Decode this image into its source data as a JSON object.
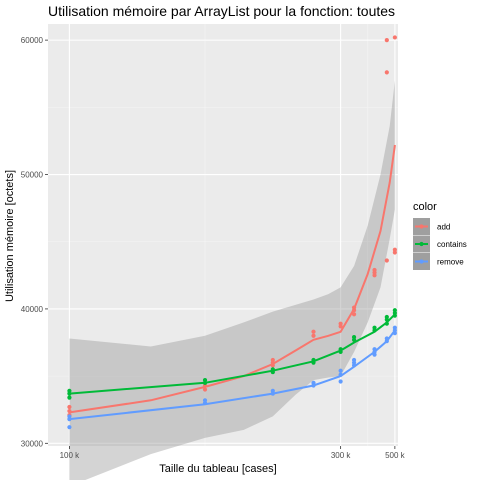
{
  "chart_data": {
    "type": "scatter",
    "title": "Utilisation mémoire par ArrayList pour la fonction: toutes",
    "xlabel": "Taille du tableau [cases]",
    "ylabel": "Utilisation mémoire [octets]",
    "xscale": "reciprocal",
    "xlim": [
      95000,
      520000
    ],
    "ylim": [
      29800,
      61200
    ],
    "x_ticks": [
      100000,
      300000,
      500000
    ],
    "x_tick_labels": [
      "100 k",
      "300 k",
      "500 k"
    ],
    "y_ticks": [
      30000,
      40000,
      50000,
      60000
    ],
    "y_tick_labels": [
      "30000",
      "40000",
      "50000",
      "60000"
    ],
    "grid": true,
    "legend": {
      "title": "color",
      "position": "right"
    },
    "series": [
      {
        "name": "add",
        "color": "#F8766D",
        "points": [
          [
            100000,
            32100
          ],
          [
            100000,
            32400
          ],
          [
            100000,
            32700
          ],
          [
            150000,
            34000
          ],
          [
            150000,
            34300
          ],
          [
            200000,
            35800
          ],
          [
            200000,
            36000
          ],
          [
            200000,
            36200
          ],
          [
            250000,
            38000
          ],
          [
            250000,
            38300
          ],
          [
            300000,
            38700
          ],
          [
            300000,
            38900
          ],
          [
            333000,
            39600
          ],
          [
            333000,
            39900
          ],
          [
            333000,
            40100
          ],
          [
            400000,
            42500
          ],
          [
            400000,
            42700
          ],
          [
            400000,
            42900
          ],
          [
            455000,
            43600
          ],
          [
            455000,
            57600
          ],
          [
            455000,
            60000
          ],
          [
            500000,
            44200
          ],
          [
            500000,
            44400
          ],
          [
            500000,
            60200
          ]
        ],
        "smooth": [
          [
            100000,
            32300
          ],
          [
            125000,
            33200
          ],
          [
            150000,
            34200
          ],
          [
            175000,
            35000
          ],
          [
            200000,
            35900
          ],
          [
            225000,
            36900
          ],
          [
            250000,
            37700
          ],
          [
            275000,
            38000
          ],
          [
            300000,
            38300
          ],
          [
            333000,
            40000
          ],
          [
            375000,
            42600
          ],
          [
            425000,
            45800
          ],
          [
            470000,
            49400
          ],
          [
            500000,
            52200
          ]
        ],
        "band_upper": [
          [
            100000,
            37800
          ],
          [
            125000,
            37200
          ],
          [
            150000,
            38000
          ],
          [
            175000,
            39000
          ],
          [
            200000,
            39800
          ],
          [
            225000,
            40300
          ],
          [
            250000,
            40700
          ],
          [
            275000,
            41100
          ],
          [
            300000,
            41600
          ],
          [
            333000,
            43200
          ],
          [
            375000,
            46200
          ],
          [
            425000,
            50000
          ],
          [
            470000,
            53600
          ],
          [
            500000,
            57000
          ]
        ],
        "band_lower": [
          [
            100000,
            26800
          ],
          [
            125000,
            29200
          ],
          [
            150000,
            30400
          ],
          [
            175000,
            31000
          ],
          [
            200000,
            32000
          ],
          [
            225000,
            33600
          ],
          [
            250000,
            34700
          ],
          [
            275000,
            34900
          ],
          [
            300000,
            35000
          ],
          [
            333000,
            36800
          ],
          [
            375000,
            39000
          ],
          [
            425000,
            41600
          ],
          [
            470000,
            45200
          ],
          [
            500000,
            47400
          ]
        ]
      },
      {
        "name": "contains",
        "color": "#00BA38",
        "points": [
          [
            100000,
            33400
          ],
          [
            100000,
            33700
          ],
          [
            100000,
            33900
          ],
          [
            150000,
            34500
          ],
          [
            150000,
            34700
          ],
          [
            200000,
            35300
          ],
          [
            200000,
            35500
          ],
          [
            250000,
            36000
          ],
          [
            250000,
            36200
          ],
          [
            300000,
            36800
          ],
          [
            300000,
            37000
          ],
          [
            333000,
            37700
          ],
          [
            333000,
            37900
          ],
          [
            400000,
            38400
          ],
          [
            400000,
            38600
          ],
          [
            455000,
            38900
          ],
          [
            455000,
            39200
          ],
          [
            455000,
            39400
          ],
          [
            500000,
            39500
          ],
          [
            500000,
            39700
          ],
          [
            500000,
            39900
          ]
        ],
        "smooth": [
          [
            100000,
            33700
          ],
          [
            150000,
            34500
          ],
          [
            200000,
            35400
          ],
          [
            250000,
            36100
          ],
          [
            300000,
            36900
          ],
          [
            333000,
            37500
          ],
          [
            400000,
            38300
          ],
          [
            455000,
            39000
          ],
          [
            500000,
            39600
          ]
        ]
      },
      {
        "name": "remove",
        "color": "#619CFF",
        "points": [
          [
            100000,
            31200
          ],
          [
            100000,
            31800
          ],
          [
            100000,
            32000
          ],
          [
            150000,
            33000
          ],
          [
            150000,
            33200
          ],
          [
            200000,
            33700
          ],
          [
            200000,
            33900
          ],
          [
            250000,
            34300
          ],
          [
            250000,
            34500
          ],
          [
            300000,
            34600
          ],
          [
            300000,
            35100
          ],
          [
            300000,
            35400
          ],
          [
            333000,
            35800
          ],
          [
            333000,
            36000
          ],
          [
            333000,
            36200
          ],
          [
            400000,
            36600
          ],
          [
            400000,
            36800
          ],
          [
            400000,
            37000
          ],
          [
            455000,
            37600
          ],
          [
            455000,
            37800
          ],
          [
            500000,
            38200
          ],
          [
            500000,
            38400
          ],
          [
            500000,
            38600
          ]
        ],
        "smooth": [
          [
            100000,
            31800
          ],
          [
            150000,
            32900
          ],
          [
            200000,
            33700
          ],
          [
            250000,
            34300
          ],
          [
            300000,
            35000
          ],
          [
            333000,
            35700
          ],
          [
            400000,
            36800
          ],
          [
            455000,
            37600
          ],
          [
            500000,
            38400
          ]
        ]
      }
    ]
  }
}
